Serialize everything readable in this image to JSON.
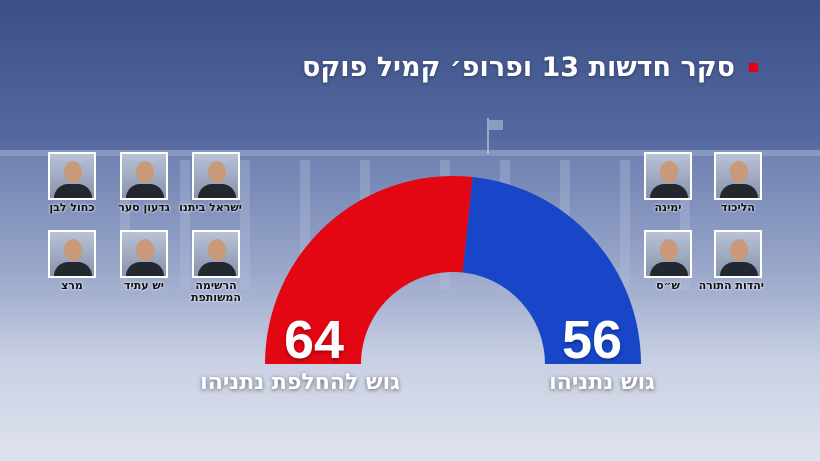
{
  "title": "סקר חדשות 13 ופרופ׳ קמיל פוקס",
  "colors": {
    "accent": "#e3001b",
    "anti_bloc": "#e30613",
    "pro_bloc": "#1746c9"
  },
  "chart_data": {
    "type": "pie",
    "shape": "semicircle",
    "total": 120,
    "slices": [
      {
        "label": "גוש להחלפת נתניהו",
        "value": 64,
        "color": "#e30613"
      },
      {
        "label": "גוש נתניהו",
        "value": 56,
        "color": "#1746c9"
      }
    ]
  },
  "parties_left": [
    {
      "label": "ישראל ביתנו",
      "icon": "portrait-icon"
    },
    {
      "label": "גדעון סער",
      "icon": "portrait-icon"
    },
    {
      "label": "כחול לבן",
      "icon": "portrait-icon"
    },
    {
      "label": "הרשימה המשותפת",
      "icon": "portrait-icon"
    },
    {
      "label": "יש עתיד",
      "icon": "portrait-icon"
    },
    {
      "label": "מרצ",
      "icon": "portrait-icon"
    }
  ],
  "parties_right": [
    {
      "label": "הליכוד",
      "icon": "portrait-icon"
    },
    {
      "label": "ימינה",
      "icon": "portrait-icon"
    },
    {
      "label": "יהדות התורה",
      "icon": "portrait-icon"
    },
    {
      "label": "ש״ס",
      "icon": "portrait-icon"
    }
  ]
}
